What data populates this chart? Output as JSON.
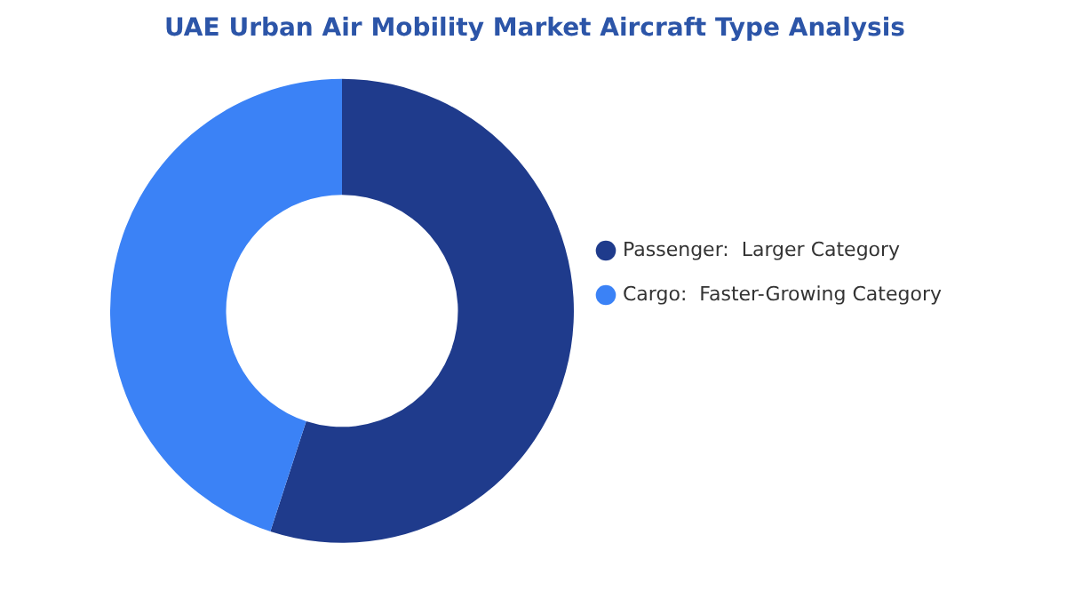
{
  "chart_data": {
    "type": "donut",
    "title": "UAE Urban Air Mobility Market Aircraft Type Analysis",
    "categories": [
      "Passenger:  Larger Category",
      "Cargo:  Faster-Growing Category"
    ],
    "values": [
      55,
      45
    ],
    "colors": [
      "#1f3b8c",
      "#3b82f6"
    ],
    "legend": "right"
  }
}
